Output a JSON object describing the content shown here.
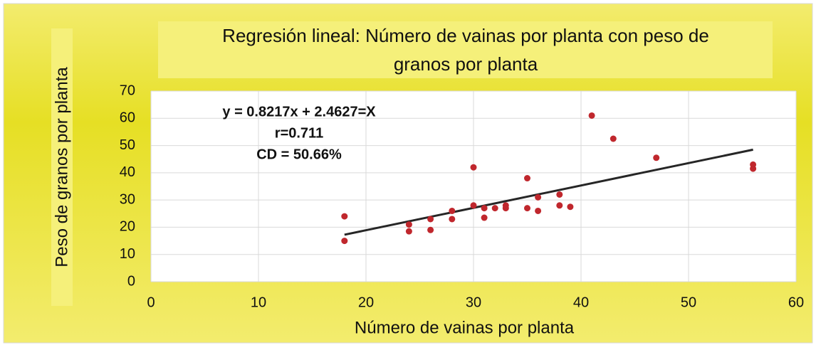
{
  "chart_data": {
    "type": "scatter",
    "title": [
      "Regresión lineal: Número de vainas por planta con peso de",
      "granos por planta"
    ],
    "x_label": "Número de vainas por planta",
    "y_label": "Peso de granos por planta",
    "annotations": [
      "y = 0.8217x + 2.4627=X",
      "r=0.711",
      "CD = 50.66%"
    ],
    "trendline": {
      "slope": 0.8217,
      "intercept": 2.4627,
      "color": "#262626"
    },
    "series": [
      {
        "name": "Peso de granos",
        "color": "#c0272d",
        "x": [
          18,
          18,
          24,
          24,
          26,
          26,
          28,
          28,
          30,
          30,
          31,
          31,
          32,
          33,
          33,
          35,
          35,
          36,
          36,
          38,
          38,
          39,
          41,
          43,
          47,
          56,
          56
        ],
        "values": [
          24,
          15,
          21,
          18.5,
          23,
          19,
          26,
          23,
          42,
          28,
          27,
          23.5,
          27,
          28,
          27,
          38,
          27,
          31,
          26,
          32,
          28,
          27.5,
          61,
          52.5,
          45.5,
          43,
          41.5
        ]
      }
    ],
    "xlim": [
      0,
      60
    ],
    "xticks": [
      0,
      10,
      20,
      30,
      40,
      50,
      60
    ],
    "ylim": [
      0,
      70
    ],
    "yticks": [
      0,
      10,
      20,
      30,
      40,
      50,
      60,
      70
    ],
    "grid": true
  }
}
